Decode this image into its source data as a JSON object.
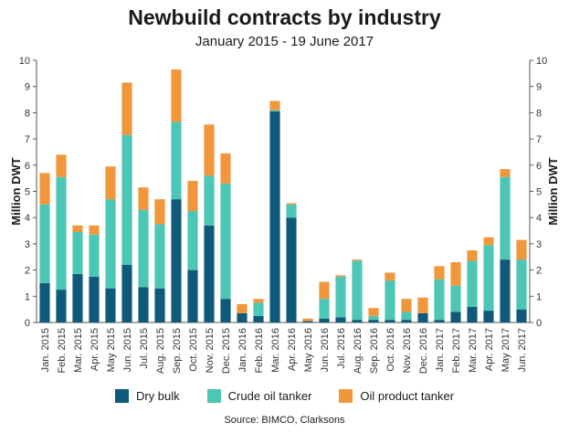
{
  "chart_data": {
    "type": "bar",
    "stacked": true,
    "title": "Newbuild contracts by industry",
    "subtitle": "January 2015 - 19 June 2017",
    "ylabel": "Million DWT",
    "ylabel_right": "Million DWT",
    "ylim": [
      0,
      10
    ],
    "yticks": [
      "0",
      "1",
      "2",
      "3",
      "4",
      "5",
      "6",
      "7",
      "8",
      "9",
      "10"
    ],
    "categories": [
      "Jan. 2015",
      "Feb. 2015",
      "Mar. 2015",
      "Apr. 2015",
      "May 2015",
      "Jun. 2015",
      "Jul. 2015",
      "Aug. 2015",
      "Sep. 2015",
      "Oct. 2015",
      "Nov. 2015",
      "Dec. 2015",
      "Jan. 2016",
      "Feb. 2016",
      "Mar. 2016",
      "Apr. 2016",
      "May 2016",
      "Jun. 2016",
      "Jul. 2016",
      "Aug. 2016",
      "Sep. 2016",
      "Oct. 2016",
      "Nov. 2016",
      "Dec. 2016",
      "Jan. 2017",
      "Feb. 2017",
      "Mar. 2017",
      "Apr. 2017",
      "May 2017",
      "Jun. 2017"
    ],
    "series": [
      {
        "name": "Dry bulk",
        "color": "#0f5a7a",
        "values": [
          1.5,
          1.25,
          1.85,
          1.75,
          1.3,
          2.2,
          1.35,
          1.3,
          4.7,
          2.0,
          3.7,
          0.9,
          0.35,
          0.25,
          8.05,
          4.0,
          0.05,
          0.15,
          0.2,
          0.1,
          0.1,
          0.1,
          0.1,
          0.35,
          0.1,
          0.4,
          0.6,
          0.45,
          2.4,
          0.5
        ]
      },
      {
        "name": "Crude oil tanker",
        "color": "#4dc7b5",
        "values": [
          3.0,
          4.3,
          1.6,
          1.6,
          3.4,
          4.95,
          2.95,
          2.45,
          2.95,
          2.25,
          1.9,
          4.4,
          0.0,
          0.5,
          0.05,
          0.5,
          0.0,
          0.75,
          1.55,
          2.25,
          0.15,
          1.5,
          0.3,
          0.0,
          1.55,
          1.0,
          1.75,
          2.5,
          3.15,
          1.9
        ]
      },
      {
        "name": "Oil product tanker",
        "color": "#f0973c",
        "values": [
          1.2,
          0.85,
          0.25,
          0.35,
          1.25,
          2.0,
          0.85,
          0.95,
          2.0,
          1.15,
          1.95,
          1.15,
          0.35,
          0.15,
          0.35,
          0.05,
          0.1,
          0.65,
          0.05,
          0.05,
          0.3,
          0.3,
          0.5,
          0.6,
          0.5,
          0.9,
          0.4,
          0.3,
          0.3,
          0.75
        ]
      }
    ],
    "legend_position": "bottom",
    "grid": false,
    "source": "Source: BIMCO, Clarksons"
  }
}
